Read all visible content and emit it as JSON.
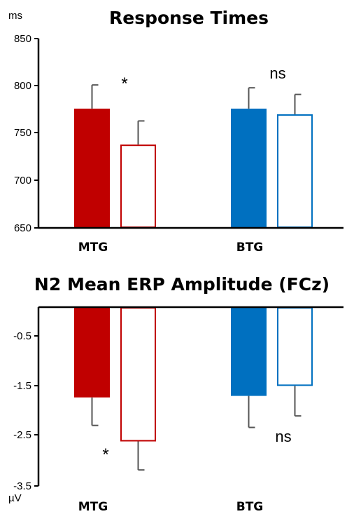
{
  "chart_data": [
    {
      "type": "bar",
      "title": "Response Times",
      "ylabel": "ms",
      "ylim": [
        650,
        850
      ],
      "yticks": [
        "850",
        "800",
        "750",
        "700",
        "650"
      ],
      "categories": [
        "MTG",
        "BTG"
      ],
      "bars": [
        {
          "category": "MTG",
          "value": 776,
          "error": 25,
          "color": "#c00000",
          "filled": true
        },
        {
          "category": "MTG",
          "value": 738,
          "error": 25,
          "color": "#c00000",
          "filled": false
        },
        {
          "category": "BTG",
          "value": 776,
          "error": 22,
          "color": "#0070c0",
          "filled": true
        },
        {
          "category": "BTG",
          "value": 770,
          "error": 21,
          "color": "#0070c0",
          "filled": false
        }
      ],
      "annotations": [
        {
          "text": "*",
          "category": "MTG"
        },
        {
          "text": "ns",
          "category": "BTG"
        }
      ]
    },
    {
      "type": "bar",
      "title": "N2 Mean ERP Amplitude (FCz)",
      "ylabel": "µV",
      "ylim": [
        -3.5,
        0.5
      ],
      "yticks": [
        "-0.5",
        "-1.5",
        "-2.5",
        "-3.5"
      ],
      "categories": [
        "MTG",
        "BTG"
      ],
      "bars": [
        {
          "category": "MTG",
          "value": -1.73,
          "error": 0.56,
          "color": "#c00000",
          "filled": true
        },
        {
          "category": "MTG",
          "value": -2.61,
          "error": 0.57,
          "color": "#c00000",
          "filled": false
        },
        {
          "category": "BTG",
          "value": -1.7,
          "error": 0.63,
          "color": "#0070c0",
          "filled": true
        },
        {
          "category": "BTG",
          "value": -1.5,
          "error": 0.6,
          "color": "#0070c0",
          "filled": false
        }
      ],
      "annotations": [
        {
          "text": "*",
          "category": "MTG"
        },
        {
          "text": "ns",
          "category": "BTG"
        }
      ]
    }
  ]
}
